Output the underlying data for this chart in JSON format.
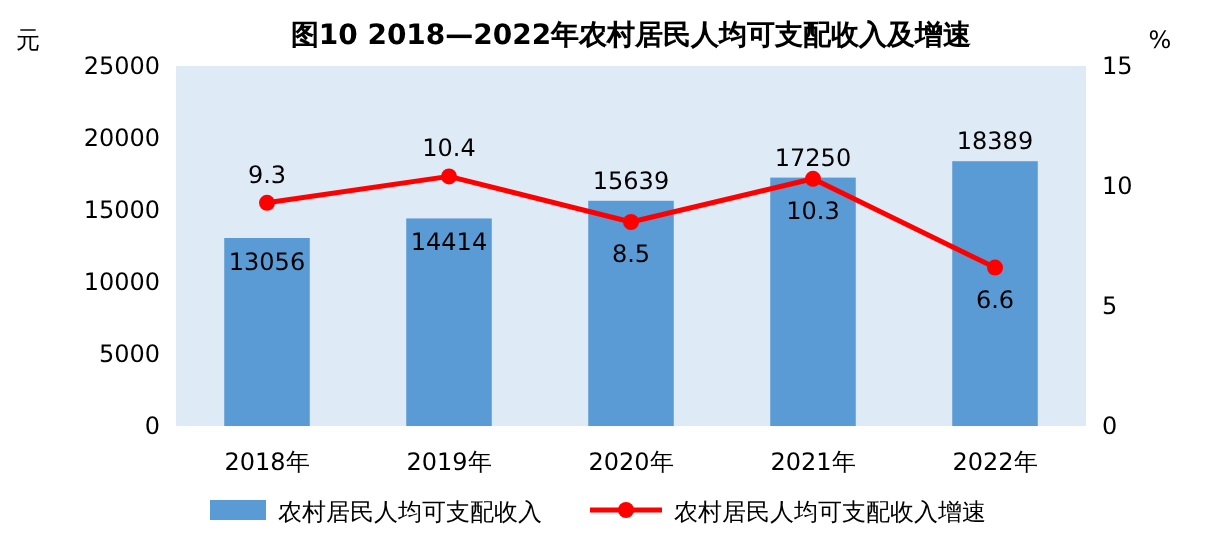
{
  "chart_data": {
    "type": "bar",
    "title": "图10  2018—2022年农村居民人均可支配收入及增速",
    "ylabel": "元",
    "y2label": "%",
    "categories": [
      "2018年",
      "2019年",
      "2020年",
      "2021年",
      "2022年"
    ],
    "series": [
      {
        "name": "农村居民人均可支配收入",
        "color": "#5b9bd5",
        "values": [
          13056,
          14414,
          15639,
          17250,
          18389
        ]
      },
      {
        "name": "农村居民人均可支配收入增速",
        "type": "line",
        "axis": "y2",
        "color": "#ff0000",
        "marker": "circle",
        "values": [
          9.3,
          10.4,
          8.5,
          10.3,
          6.6
        ]
      }
    ],
    "ylim": [
      0,
      25000
    ],
    "yticks": [
      0,
      5000,
      10000,
      15000,
      20000,
      25000
    ],
    "y2lim": [
      0,
      15
    ],
    "y2ticks": [
      0,
      5,
      10,
      15
    ],
    "data_labels": true,
    "legend": "bottom",
    "grid": false
  }
}
